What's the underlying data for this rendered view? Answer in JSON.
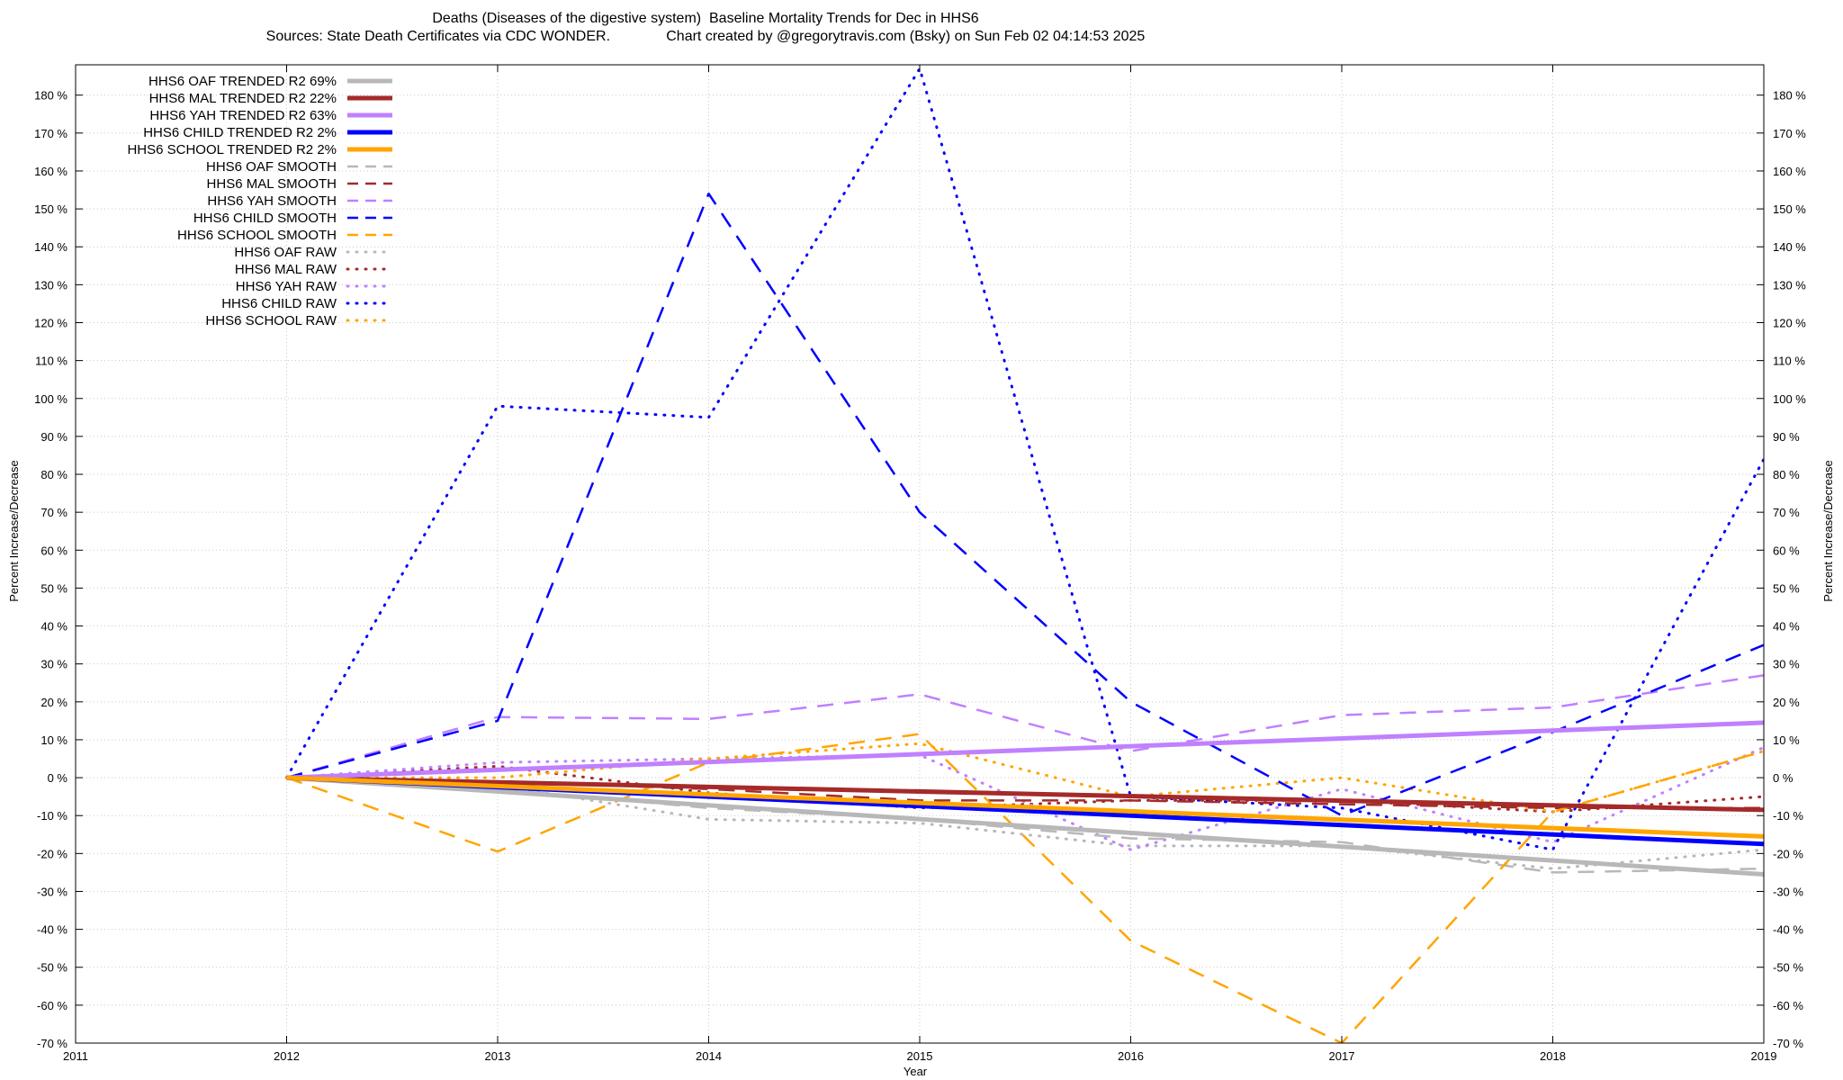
{
  "chart_data": {
    "type": "line",
    "title": "Deaths (Diseases of the digestive system)  Baseline Mortality Trends for Dec in HHS6",
    "subtitle": "Sources: State Death Certificates via CDC WONDER.              Chart created by @gregorytravis.com (Bsky) on Sun Feb 02 04:14:53 2025",
    "xlabel": "Year",
    "ylabel": "Percent Increase/Decrease",
    "y2label": "Percent Increase/Decrease",
    "xlim": [
      2011,
      2019
    ],
    "ylim": [
      -70,
      188
    ],
    "x_ticks": [
      2011,
      2012,
      2013,
      2014,
      2015,
      2016,
      2017,
      2018,
      2019
    ],
    "y_ticks": [
      -70,
      -60,
      -50,
      -40,
      -30,
      -20,
      -10,
      0,
      10,
      20,
      30,
      40,
      50,
      60,
      70,
      80,
      90,
      100,
      110,
      120,
      130,
      140,
      150,
      160,
      170,
      180
    ],
    "y_tick_suffix": " %",
    "grid": true,
    "legend_position": "top-left",
    "series": [
      {
        "name": "HHS6 OAF TRENDED R2  69%",
        "color": "#b8b8b8",
        "style": "solid",
        "x": [
          2012,
          2019
        ],
        "y": [
          0,
          -25.5
        ]
      },
      {
        "name": "HHS6 MAL TRENDED R2  22%",
        "color": "#a52a2a",
        "style": "solid",
        "x": [
          2012,
          2019
        ],
        "y": [
          0,
          -8.5
        ]
      },
      {
        "name": "HHS6 YAH TRENDED R2  63%",
        "color": "#c080ff",
        "style": "solid",
        "x": [
          2012,
          2019
        ],
        "y": [
          0,
          14.5
        ]
      },
      {
        "name": "HHS6 CHILD TRENDED R2   2%",
        "color": "#0000ff",
        "style": "solid",
        "x": [
          2012,
          2019
        ],
        "y": [
          0,
          -17.5
        ]
      },
      {
        "name": "HHS6 SCHOOL TRENDED R2   2%",
        "color": "#ffa500",
        "style": "solid",
        "x": [
          2012,
          2019
        ],
        "y": [
          0,
          -15.5
        ]
      },
      {
        "name": "HHS6 OAF SMOOTH",
        "color": "#b8b8b8",
        "style": "dashed",
        "x": [
          2012,
          2013,
          2014,
          2015,
          2016,
          2017,
          2018,
          2019
        ],
        "y": [
          0,
          -3,
          -8,
          -11,
          -16,
          -17,
          -25,
          -24
        ]
      },
      {
        "name": "HHS6 MAL SMOOTH",
        "color": "#a52a2a",
        "style": "dashed",
        "x": [
          2012,
          2013,
          2014,
          2015,
          2016,
          2017,
          2018,
          2019
        ],
        "y": [
          0,
          -1,
          -3,
          -6,
          -6,
          -7,
          -8,
          -8
        ]
      },
      {
        "name": "HHS6 YAH SMOOTH",
        "color": "#c080ff",
        "style": "dashed",
        "x": [
          2012,
          2013,
          2014,
          2015,
          2016,
          2017,
          2018,
          2019
        ],
        "y": [
          0,
          16,
          15.5,
          22,
          7,
          16.5,
          18.5,
          27
        ]
      },
      {
        "name": "HHS6 CHILD SMOOTH",
        "color": "#0000ff",
        "style": "dashed",
        "x": [
          2012,
          2013,
          2014,
          2015,
          2016,
          2017,
          2018,
          2019
        ],
        "y": [
          0,
          15,
          154,
          70,
          20,
          -10,
          12,
          35
        ]
      },
      {
        "name": "HHS6 SCHOOL SMOOTH",
        "color": "#ffa500",
        "style": "dashed",
        "x": [
          2012,
          2013,
          2014,
          2015,
          2016,
          2017,
          2018,
          2019
        ],
        "y": [
          0,
          -19.5,
          4,
          11.5,
          -43,
          -70,
          -9,
          7
        ]
      },
      {
        "name": "HHS6 OAF RAW",
        "color": "#b8b8b8",
        "style": "dotted",
        "x": [
          2012,
          2013,
          2014,
          2015,
          2016,
          2017,
          2018,
          2019
        ],
        "y": [
          0,
          -2,
          -11,
          -12,
          -18,
          -18,
          -24,
          -19
        ]
      },
      {
        "name": "HHS6 MAL RAW",
        "color": "#a52a2a",
        "style": "dotted",
        "x": [
          2012,
          2013,
          2014,
          2015,
          2016,
          2017,
          2018,
          2019
        ],
        "y": [
          0,
          3,
          -4,
          -8,
          -6,
          -6,
          -9,
          -5
        ]
      },
      {
        "name": "HHS6 YAH RAW",
        "color": "#c080ff",
        "style": "dotted",
        "x": [
          2012,
          2013,
          2014,
          2015,
          2016,
          2017,
          2018,
          2019
        ],
        "y": [
          0,
          4,
          5,
          6,
          -19,
          -3,
          -17,
          8
        ]
      },
      {
        "name": "HHS6 CHILD RAW",
        "color": "#0000ff",
        "style": "dotted",
        "x": [
          2012,
          2013,
          2014,
          2015,
          2016,
          2017,
          2018,
          2019
        ],
        "y": [
          0,
          98,
          95,
          187,
          -5,
          -8,
          -19,
          84
        ]
      },
      {
        "name": "HHS6 SCHOOL RAW",
        "color": "#ffa500",
        "style": "dotted",
        "x": [
          2012,
          2013,
          2014,
          2015,
          2016,
          2017,
          2018,
          2019
        ],
        "y": [
          0,
          0,
          5,
          9,
          -5,
          0,
          -9,
          7
        ]
      }
    ]
  }
}
